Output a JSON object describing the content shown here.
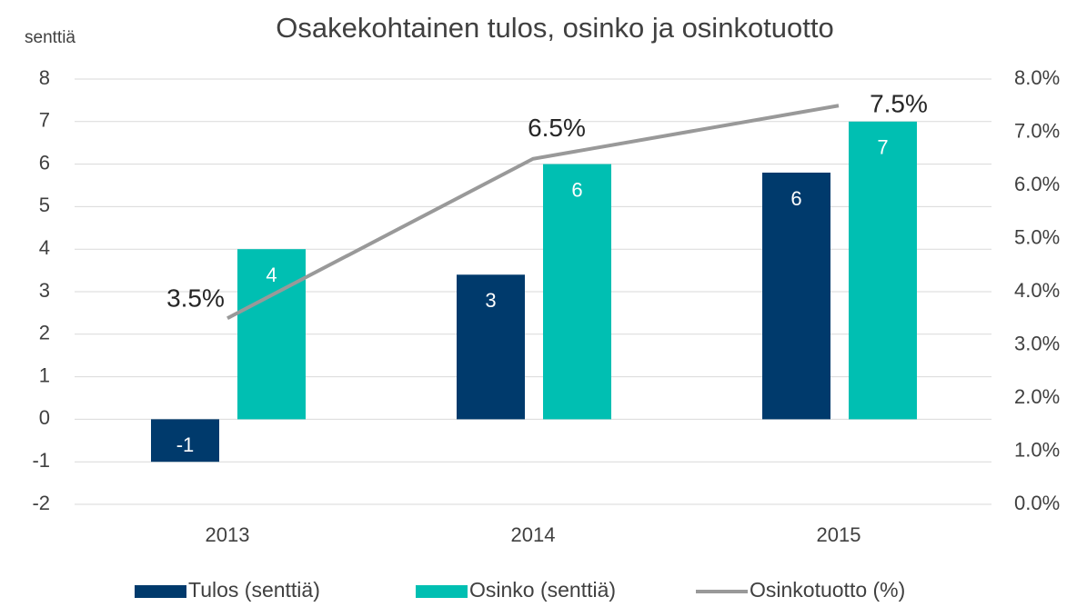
{
  "chart_data": {
    "type": "bar",
    "title": "Osakekohtainen tulos, osinko ja osinkotuotto",
    "y_label": "senttiä",
    "categories": [
      "2013",
      "2014",
      "2015"
    ],
    "series": [
      {
        "name": "Tulos (senttiä)",
        "type": "bar",
        "color": "#003a6c",
        "values": [
          -1,
          3.4,
          5.8
        ],
        "value_labels": [
          "-1",
          "3",
          "6"
        ]
      },
      {
        "name": "Osinko (senttiä)",
        "type": "bar",
        "color": "#00bfb2",
        "values": [
          4,
          6,
          7
        ],
        "value_labels": [
          "4",
          "6",
          "7"
        ]
      },
      {
        "name": "Osinkotuotto (%)",
        "type": "line",
        "axis": "y2",
        "color": "#999999",
        "values": [
          3.5,
          6.5,
          7.5
        ],
        "value_labels": [
          "3.5%",
          "6.5%",
          "7.5%"
        ]
      }
    ],
    "ylim": [
      -2,
      8
    ],
    "yticks": [
      -2,
      -1,
      0,
      1,
      2,
      3,
      4,
      5,
      6,
      7,
      8
    ],
    "y2lim": [
      0,
      8
    ],
    "y2ticks": [
      {
        "value": 0,
        "label": "0.0%"
      },
      {
        "value": 1,
        "label": "1.0%"
      },
      {
        "value": 2,
        "label": "2.0%"
      },
      {
        "value": 3,
        "label": "3.0%"
      },
      {
        "value": 4,
        "label": "4.0%"
      },
      {
        "value": 5,
        "label": "5.0%"
      },
      {
        "value": 6,
        "label": "6.0%"
      },
      {
        "value": 7,
        "label": "7.0%"
      },
      {
        "value": 8,
        "label": "8.0%"
      }
    ],
    "grid": true,
    "legend": "bottom"
  }
}
